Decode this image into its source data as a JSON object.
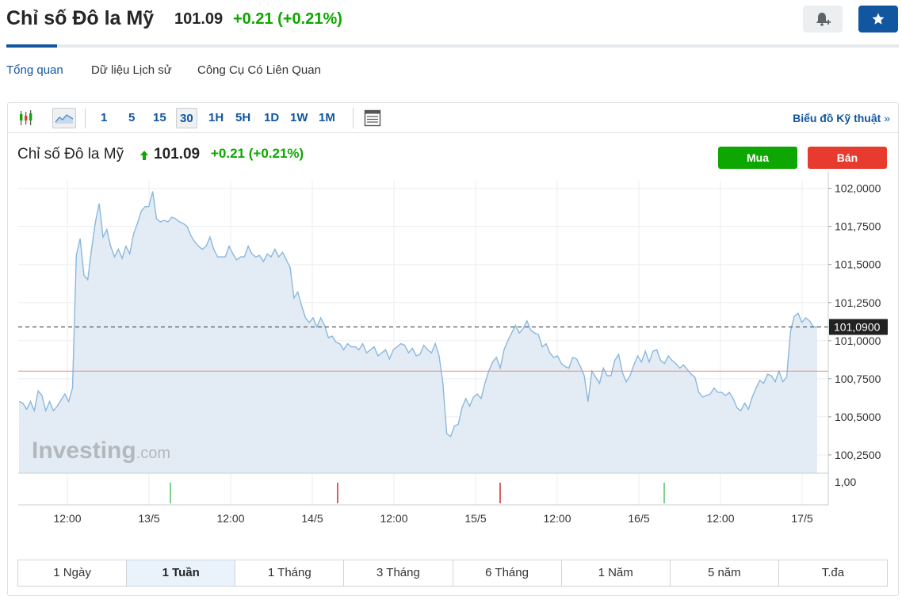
{
  "header": {
    "title": "Chỉ số Đô la Mỹ",
    "price": "101.09",
    "change": "+0.21",
    "change_pct": "(+0.21%)",
    "bell_icon": "bell-plus-icon",
    "star_icon": "star-icon"
  },
  "tabs": [
    "Tổng quan",
    "Dữ liệu Lịch sử",
    "Công Cụ Có Liên Quan"
  ],
  "toolbar": {
    "intervals": [
      "1",
      "5",
      "15",
      "30",
      "1H",
      "5H",
      "1D",
      "1W",
      "1M"
    ],
    "selected_interval": "30",
    "tech_link": "Biểu đồ Kỹ thuật",
    "tech_link_arrow": "»"
  },
  "chart_header": {
    "title": "Chỉ số Đô la Mỹ",
    "price": "101.09",
    "change": "+0.21 (+0.21%)",
    "buy_label": "Mua",
    "sell_label": "Bán"
  },
  "watermark": {
    "brand": "Investing",
    "suffix": ".com"
  },
  "periods": [
    "1 Ngày",
    "1 Tuần",
    "1 Tháng",
    "3 Tháng",
    "6 Tháng",
    "1 Năm",
    "5 năm",
    "T.đa"
  ],
  "selected_period": "1 Tuần",
  "colors": {
    "accent": "#1256a0",
    "up": "#0ea600",
    "down": "#e63b2e",
    "line": "#8ab8dd",
    "area": "#e3ecf5"
  },
  "chart_data": {
    "type": "area",
    "title": "Chỉ số Đô la Mỹ",
    "x_tick_labels": [
      "12:00",
      "13/5",
      "12:00",
      "14/5",
      "12:00",
      "15/5",
      "12:00",
      "16/5",
      "12:00",
      "17/5"
    ],
    "y_tick_labels": [
      "102,0000",
      "101,7500",
      "101,5000",
      "101,2500",
      "101,0000",
      "100,7500",
      "100,5000",
      "100,2500"
    ],
    "ylim": [
      100.13,
      102.05
    ],
    "current_value": 101.09,
    "current_value_label": "101,0900",
    "previous_close": 100.8,
    "volume_axis_label": "1,00",
    "volume_markers": [
      {
        "color": "green"
      },
      {
        "color": "red"
      },
      {
        "color": "red"
      },
      {
        "color": "green"
      }
    ],
    "grid": true,
    "series": [
      {
        "values": [
          100.6,
          100.59,
          100.55,
          100.6,
          100.54,
          100.67,
          100.64,
          100.54,
          100.6,
          100.54,
          100.57,
          100.61,
          100.65,
          100.6,
          100.69,
          101.56,
          101.67,
          101.43,
          101.4,
          101.6,
          101.78,
          101.9,
          101.68,
          101.73,
          101.62,
          101.55,
          101.6,
          101.54,
          101.62,
          101.57,
          101.7,
          101.77,
          101.85,
          101.88,
          101.88,
          101.98,
          101.8,
          101.78,
          101.79,
          101.78,
          101.81,
          101.8,
          101.78,
          101.77,
          101.75,
          101.69,
          101.65,
          101.62,
          101.6,
          101.62,
          101.68,
          101.6,
          101.55,
          101.55,
          101.55,
          101.62,
          101.57,
          101.53,
          101.55,
          101.55,
          101.62,
          101.57,
          101.55,
          101.56,
          101.52,
          101.57,
          101.55,
          101.6,
          101.55,
          101.58,
          101.53,
          101.48,
          101.28,
          101.32,
          101.23,
          101.15,
          101.12,
          101.15,
          101.09,
          101.15,
          101.1,
          101.02,
          101.03,
          100.99,
          100.98,
          100.94,
          100.98,
          100.96,
          100.96,
          100.94,
          100.98,
          100.92,
          100.94,
          100.96,
          100.9,
          100.92,
          100.94,
          100.88,
          100.94,
          100.96,
          100.98,
          100.97,
          100.92,
          100.95,
          100.9,
          100.91,
          100.97,
          100.94,
          100.92,
          100.98,
          100.9,
          100.72,
          100.39,
          100.37,
          100.44,
          100.45,
          100.56,
          100.62,
          100.57,
          100.63,
          100.65,
          100.62,
          100.72,
          100.8,
          100.86,
          100.89,
          100.82,
          100.94,
          101.0,
          101.05,
          101.1,
          101.05,
          101.08,
          101.13,
          101.07,
          101.05,
          101.04,
          100.96,
          100.98,
          100.92,
          100.89,
          100.9,
          100.85,
          100.83,
          100.82,
          100.89,
          100.88,
          100.83,
          100.77,
          100.6,
          100.8,
          100.76,
          100.72,
          100.82,
          100.77,
          100.77,
          100.87,
          100.91,
          100.79,
          100.73,
          100.77,
          100.84,
          100.9,
          100.86,
          100.93,
          100.86,
          100.93,
          100.94,
          100.87,
          100.85,
          100.9,
          100.87,
          100.85,
          100.82,
          100.84,
          100.81,
          100.78,
          100.76,
          100.66,
          100.63,
          100.64,
          100.65,
          100.69,
          100.66,
          100.66,
          100.64,
          100.66,
          100.62,
          100.56,
          100.54,
          100.59,
          100.55,
          100.63,
          100.69,
          100.74,
          100.72,
          100.78,
          100.77,
          100.73,
          100.8,
          100.73,
          100.76,
          101.06,
          101.16,
          101.18,
          101.12,
          101.15,
          101.13,
          101.09,
          101.09
        ]
      }
    ]
  }
}
